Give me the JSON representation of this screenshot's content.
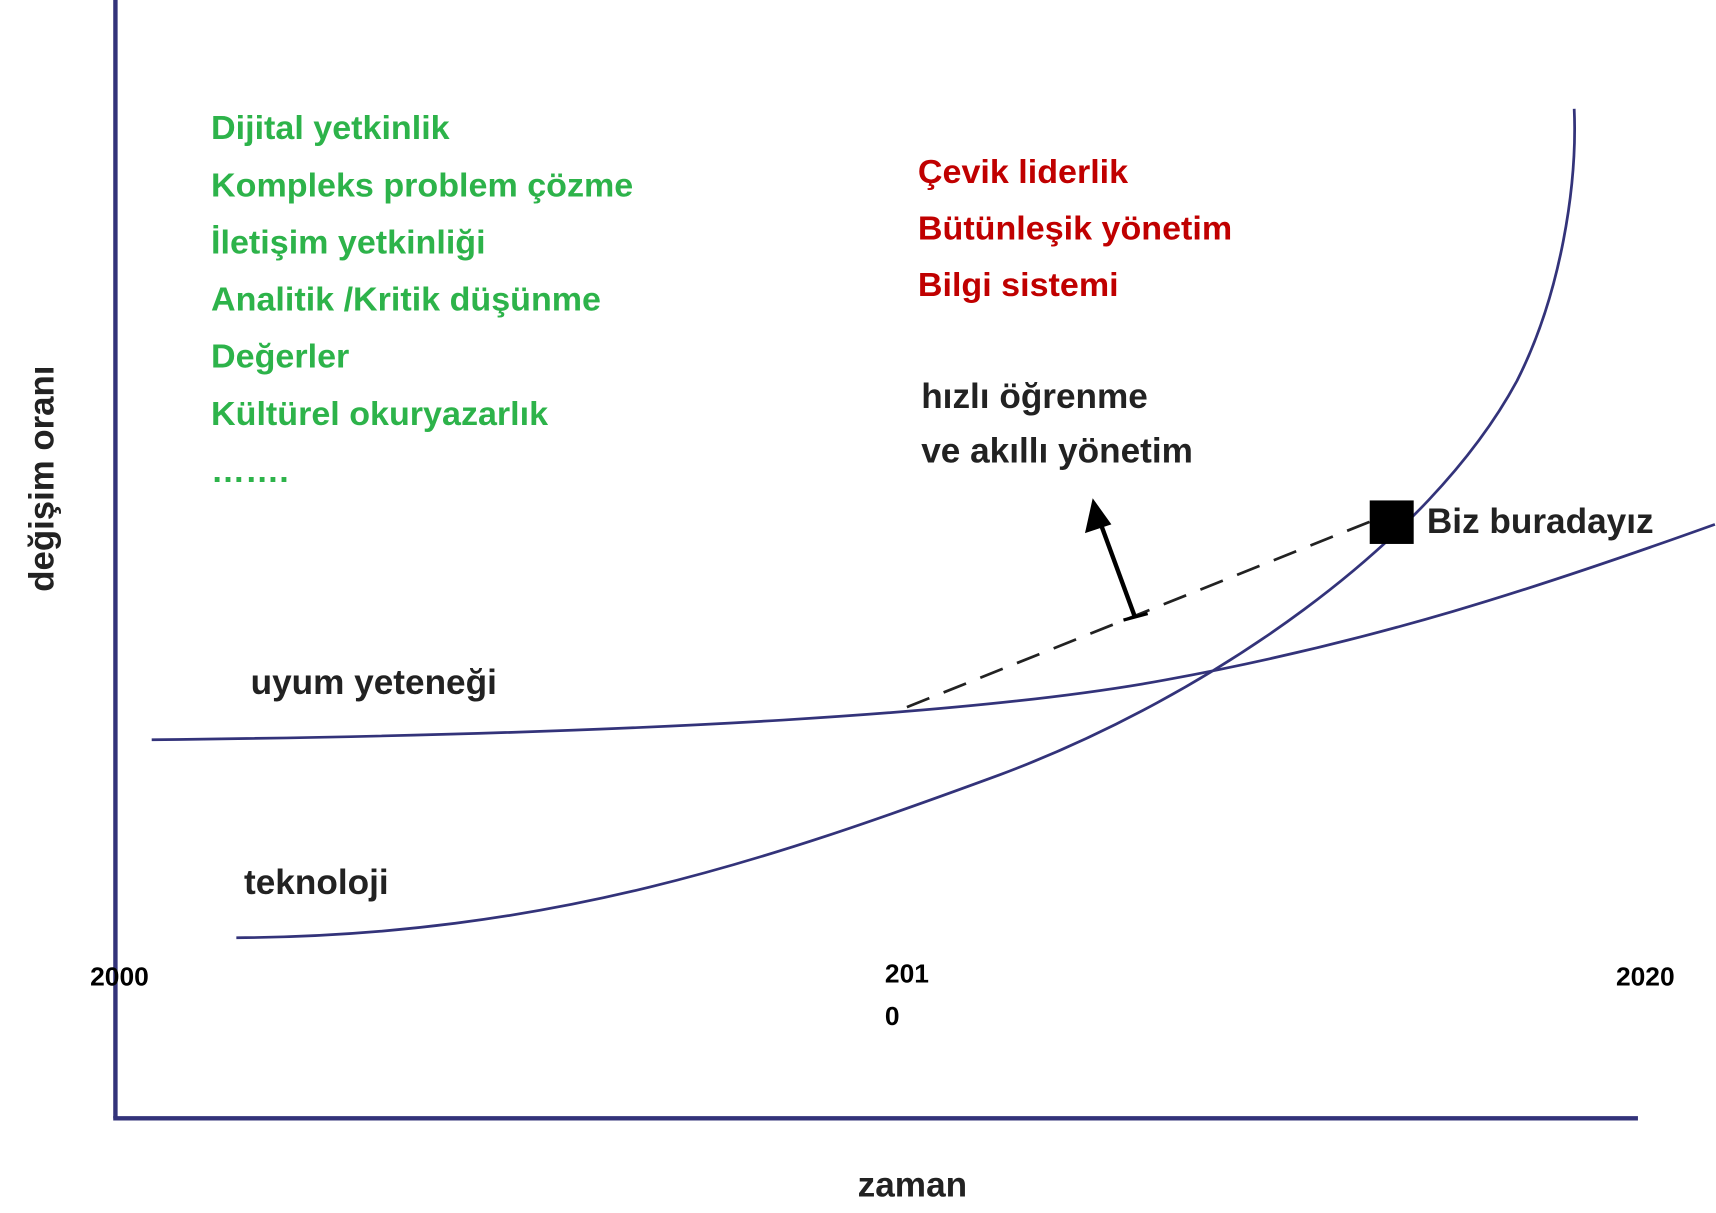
{
  "y_axis_label": "değişim oranı",
  "x_axis_label": "zaman",
  "skills": [
    "Dijital yetkinlik",
    "Kompleks problem çözme",
    "İletişim yetkinliği",
    "Analitik /Kritik düşünme",
    "Değerler",
    "Kültürel okuryazarlık",
    "……."
  ],
  "management": [
    "Çevik liderlik",
    "Bütünleşik yönetim",
    "Bilgi sistemi"
  ],
  "arrow_label": [
    "hızlı öğrenme",
    "ve akıllı yönetim"
  ],
  "curves": {
    "adaptation": "uyum yeteneği",
    "technology": "teknoloji"
  },
  "marker_label": "Biz buradayız",
  "x_labels": [
    {
      "lines": [
        "2000"
      ]
    },
    {
      "lines": [
        "201",
        "0"
      ]
    },
    {
      "lines": [
        "2020"
      ]
    }
  ]
}
